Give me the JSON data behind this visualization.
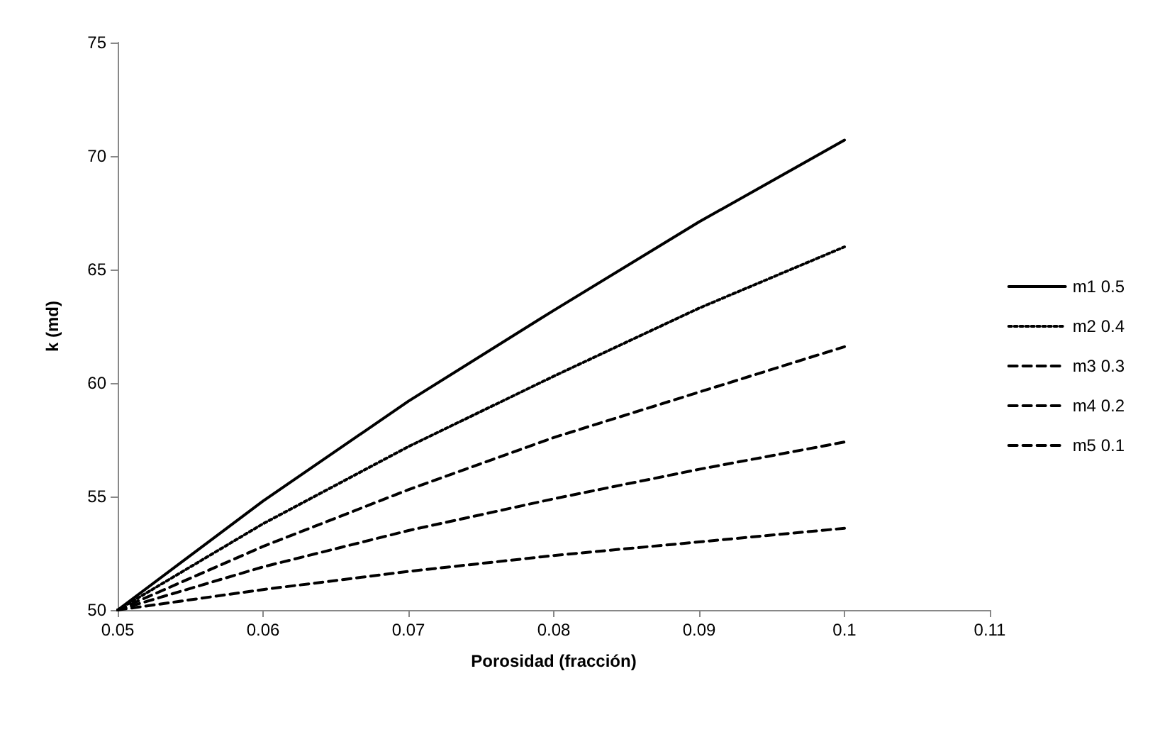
{
  "chart_data": {
    "type": "line",
    "xlabel": "Porosidad (fracción)",
    "ylabel": "k (md)",
    "x": [
      0.05,
      0.06,
      0.07,
      0.08,
      0.09,
      0.1
    ],
    "series": [
      {
        "name": "m1 0.5",
        "color": "#000000",
        "line_style": "solid",
        "values": [
          50,
          54.8,
          59.2,
          63.2,
          67.1,
          70.7
        ]
      },
      {
        "name": "m2 0.4",
        "color": "#000000",
        "line_style": "dotted",
        "values": [
          50,
          53.8,
          57.2,
          60.3,
          63.3,
          66.0
        ]
      },
      {
        "name": "m3 0.3",
        "color": "#000000",
        "line_style": "dashed",
        "values": [
          50,
          52.8,
          55.3,
          57.6,
          59.6,
          61.6
        ]
      },
      {
        "name": "m4 0.2",
        "color": "#000000",
        "line_style": "dashed",
        "values": [
          50,
          51.9,
          53.5,
          54.9,
          56.2,
          57.4
        ]
      },
      {
        "name": "m5 0.1",
        "color": "#000000",
        "line_style": "dashed",
        "values": [
          50,
          50.9,
          51.7,
          52.4,
          53.0,
          53.6
        ]
      }
    ],
    "xlim": [
      0.05,
      0.11
    ],
    "xticks": [
      0.05,
      0.06,
      0.07,
      0.08,
      0.09,
      0.1,
      0.11
    ],
    "ylim": [
      50,
      75
    ],
    "yticks": [
      50,
      55,
      60,
      65,
      70,
      75
    ],
    "grid": false,
    "legend": "right",
    "marker": "none"
  }
}
